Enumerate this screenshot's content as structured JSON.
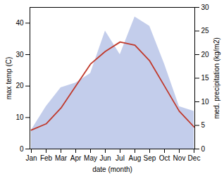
{
  "chart_data": {
    "type": "line",
    "xlabel": "date (month)",
    "ylabel": "max temp (C)",
    "y2label": "med. precipitation (kg/m2)",
    "categories": [
      "Jan",
      "Feb",
      "Mar",
      "Apr",
      "May",
      "Jun",
      "Jul",
      "Aug",
      "Sep",
      "Oct",
      "Nov",
      "Dec"
    ],
    "series": [
      {
        "type": "area",
        "axis": "y2",
        "color": "#b8c4e8",
        "values": [
          4,
          9,
          13,
          14,
          16,
          25,
          20,
          28,
          26,
          18,
          9,
          8
        ]
      },
      {
        "type": "line",
        "color": "#c0392b",
        "values": [
          6,
          8,
          13,
          20,
          27,
          31,
          34,
          33,
          28,
          20,
          12,
          7
        ]
      }
    ],
    "ylim": [
      0,
      45
    ],
    "yticks": [
      0,
      10,
      20,
      30,
      40
    ],
    "y2lim": [
      0,
      30
    ],
    "y2ticks": [
      0,
      5,
      10,
      15,
      20,
      25,
      30
    ]
  }
}
